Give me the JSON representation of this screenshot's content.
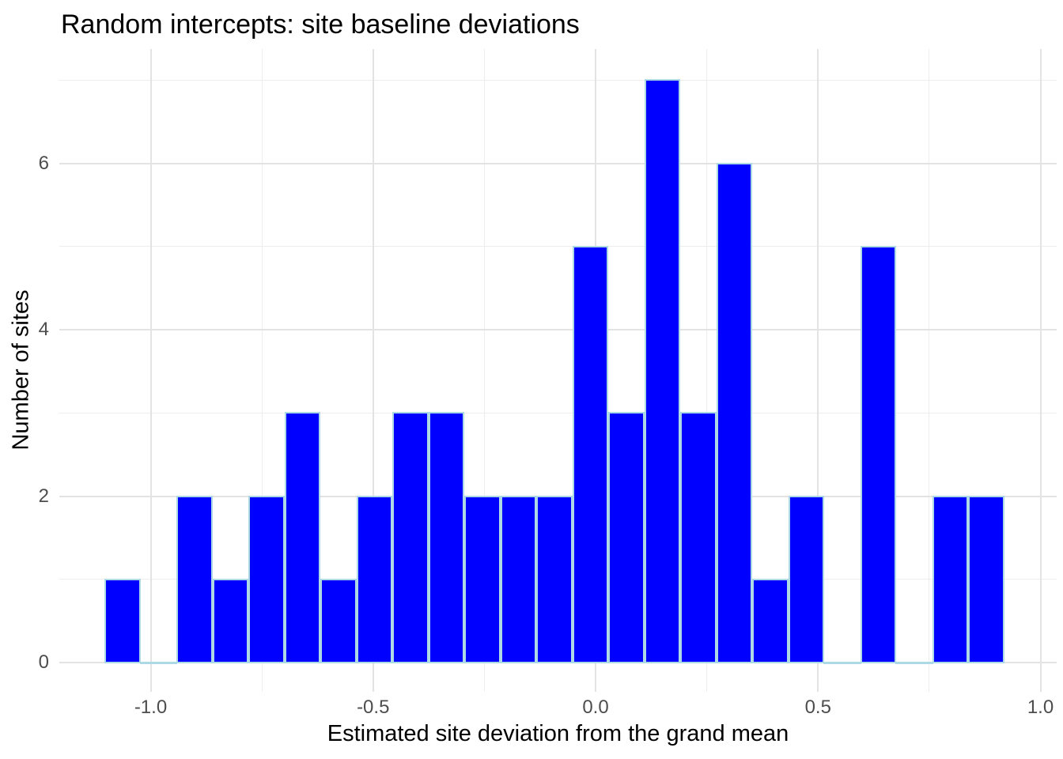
{
  "chart_data": {
    "type": "bar",
    "subtype": "histogram",
    "title": "Random intercepts: site baseline deviations",
    "xlabel": "Estimated site deviation from the grand mean",
    "ylabel": "Number of sites",
    "bins": {
      "start": -1.104,
      "width": 0.0809,
      "counts": [
        1,
        0,
        2,
        1,
        2,
        3,
        1,
        2,
        3,
        3,
        2,
        2,
        2,
        5,
        3,
        7,
        3,
        6,
        1,
        2,
        0,
        5,
        0,
        2,
        2
      ]
    },
    "x_axis": {
      "tick_values": [
        -1.0,
        -0.5,
        0.0,
        0.5,
        1.0
      ],
      "tick_labels": [
        "-1.0",
        "-0.5",
        "0.0",
        "0.5",
        "1.0"
      ],
      "minor_tick_values": [
        -0.75,
        -0.25,
        0.25,
        0.75
      ],
      "range": [
        -1.205,
        1.037
      ]
    },
    "y_axis": {
      "tick_values": [
        0,
        2,
        4,
        6
      ],
      "tick_labels": [
        "0",
        "2",
        "4",
        "6"
      ],
      "minor_tick_values": [
        1,
        3,
        5,
        7
      ],
      "range": [
        -0.35,
        7.37
      ]
    },
    "grid": "major+minor",
    "legend": "none",
    "colors": {
      "bar_fill": "#0000FE",
      "bar_border": "#ADD8E6",
      "grid_major": "#E3E3E3",
      "grid_minor": "#EDEDED",
      "tick_label_color": "#4D4D4D",
      "title_color": "#000000",
      "background": "#FFFFFF"
    }
  }
}
